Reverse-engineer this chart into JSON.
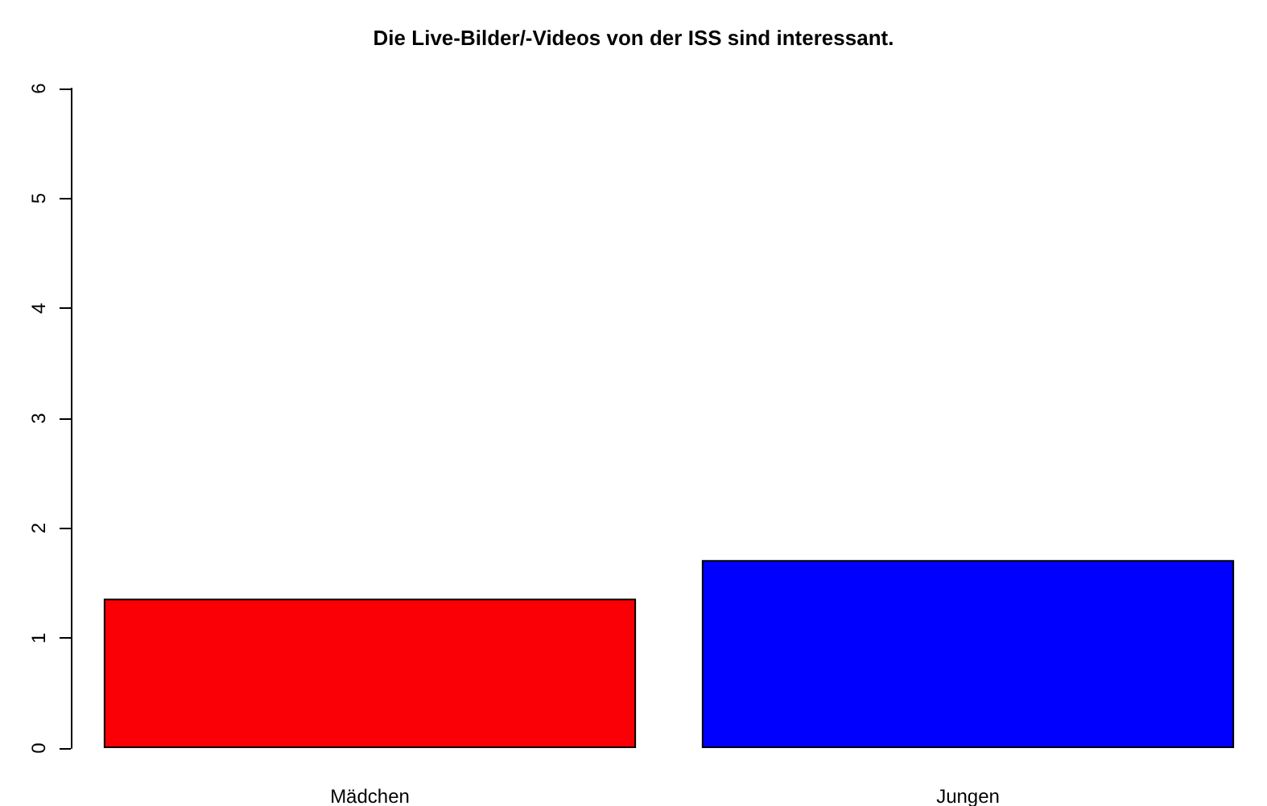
{
  "chart_data": {
    "type": "bar",
    "title": "Die Live-Bilder/-Videos von der ISS sind interessant.",
    "categories": [
      "Mädchen",
      "Jungen"
    ],
    "values": [
      1.36,
      1.71
    ],
    "colors": [
      "#fa0006",
      "#0000fe"
    ],
    "ylim": [
      0,
      6
    ],
    "yticks": [
      0,
      1,
      2,
      3,
      4,
      5,
      6
    ],
    "grid": false
  }
}
